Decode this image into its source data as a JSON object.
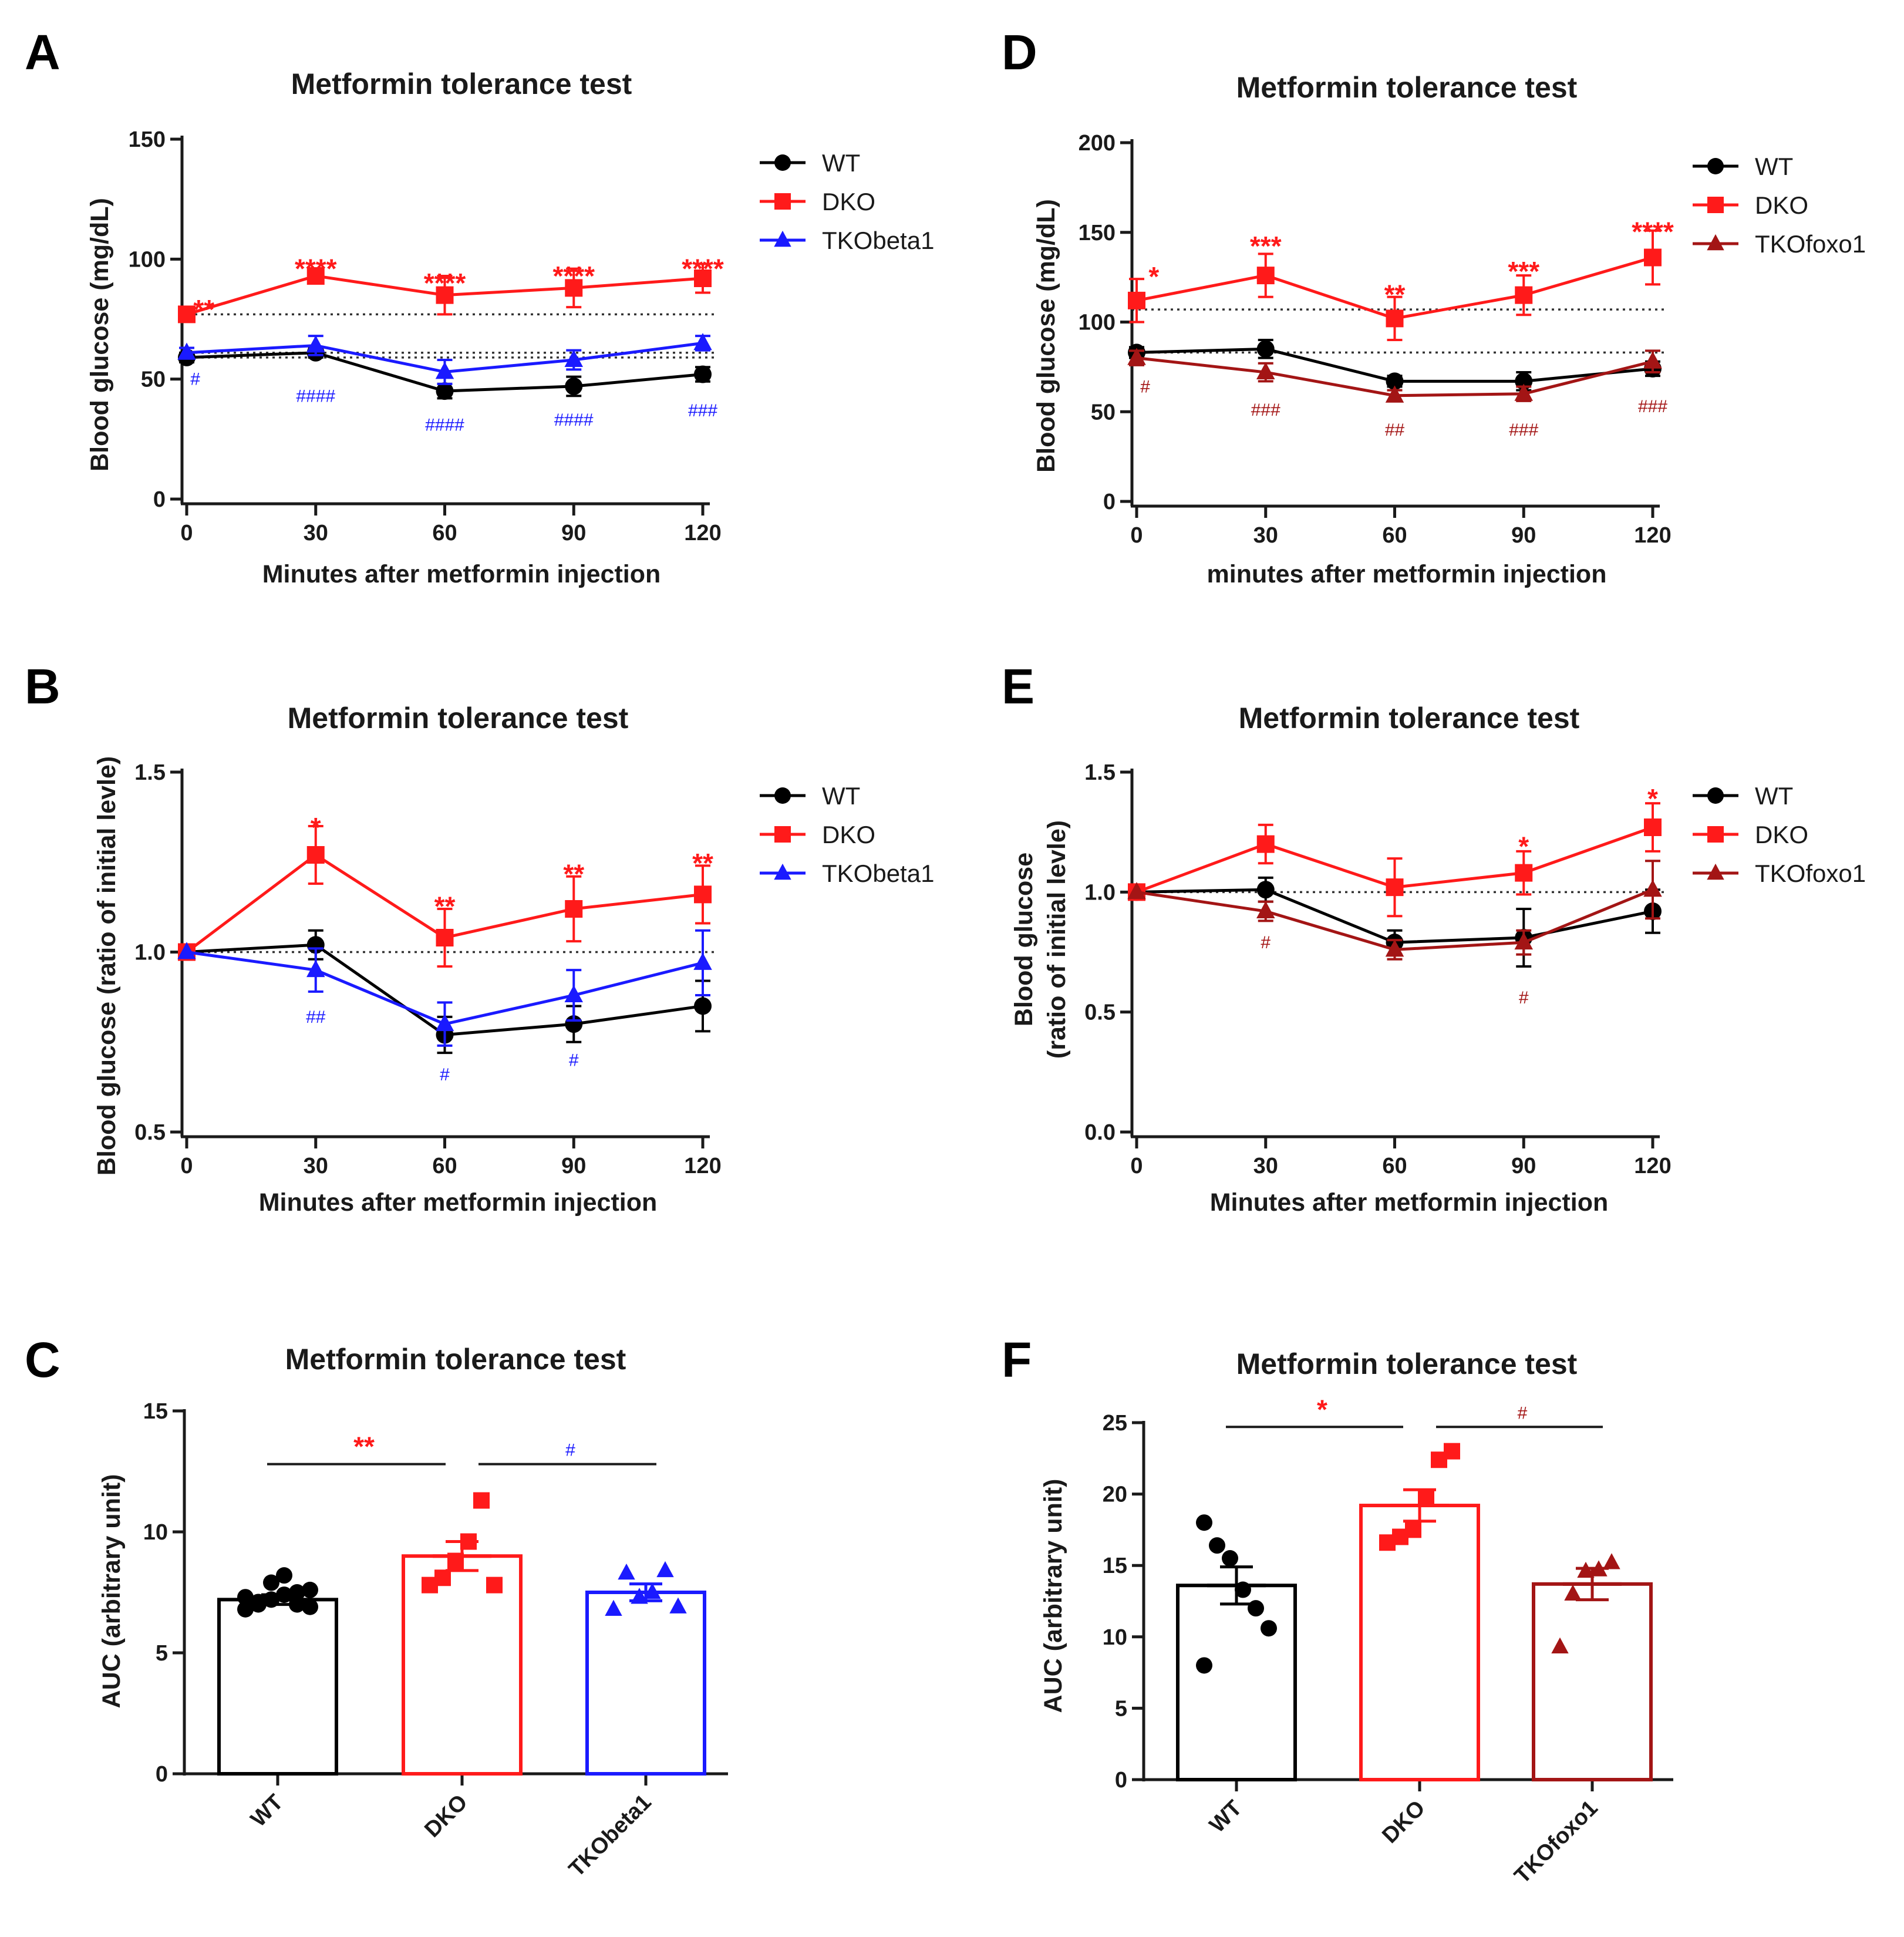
{
  "colors": {
    "WT": "#000000",
    "DKO": "#ff1a1a",
    "TKObeta1": "#1a1aff",
    "TKOfoxo1": "#a31515",
    "axis": "#1a1a1a",
    "ref_line": "#333333"
  },
  "chart_data": [
    {
      "id": "A",
      "panel_label": "A",
      "type": "line",
      "title": "Metformin tolerance test",
      "xlabel": "Minutes after metformin injection",
      "ylabel": "Blood glucose (mg/dL)",
      "xlim": [
        0,
        120
      ],
      "ylim": [
        0,
        150
      ],
      "xticks": [
        0,
        30,
        60,
        90,
        120
      ],
      "yticks": [
        0,
        50,
        100,
        150
      ],
      "ytick_labels": [
        "0",
        "50",
        "100",
        "150"
      ],
      "ref_lines": [
        77,
        61,
        59
      ],
      "x": [
        0,
        30,
        60,
        90,
        120
      ],
      "legend_position": "top-right",
      "series": [
        {
          "name": "WT",
          "color_key": "WT",
          "marker": "circle",
          "values": [
            59,
            61,
            45,
            47,
            52
          ],
          "errors": [
            2,
            2,
            3,
            4,
            3
          ]
        },
        {
          "name": "DKO",
          "color_key": "DKO",
          "marker": "square",
          "values": [
            77,
            93,
            85,
            88,
            92
          ],
          "errors": [
            3,
            2,
            8,
            8,
            6
          ]
        },
        {
          "name": "TKObeta1",
          "color_key": "TKObeta1",
          "marker": "triangle",
          "values": [
            61,
            64,
            53,
            58,
            65
          ],
          "errors": [
            2,
            4,
            5,
            4,
            3
          ]
        }
      ],
      "annotations": [
        {
          "text": "**",
          "x": 4,
          "y": 81,
          "color_key": "DKO",
          "size": 46
        },
        {
          "text": "****",
          "x": 30,
          "y": 98,
          "color_key": "DKO",
          "size": 46
        },
        {
          "text": "****",
          "x": 60,
          "y": 92,
          "color_key": "DKO",
          "size": 46
        },
        {
          "text": "****",
          "x": 90,
          "y": 95,
          "color_key": "DKO",
          "size": 46
        },
        {
          "text": "****",
          "x": 120,
          "y": 98,
          "color_key": "DKO",
          "size": 46
        },
        {
          "text": "#",
          "x": 2,
          "y": 50,
          "color_key": "TKObeta1",
          "size": 30
        },
        {
          "text": "####",
          "x": 30,
          "y": 43,
          "color_key": "TKObeta1",
          "size": 30
        },
        {
          "text": "####",
          "x": 60,
          "y": 31,
          "color_key": "TKObeta1",
          "size": 30
        },
        {
          "text": "####",
          "x": 90,
          "y": 33,
          "color_key": "TKObeta1",
          "size": 30
        },
        {
          "text": "###",
          "x": 120,
          "y": 37,
          "color_key": "TKObeta1",
          "size": 30
        }
      ]
    },
    {
      "id": "B",
      "panel_label": "B",
      "type": "line",
      "title": "Metformin tolerance test",
      "xlabel": "Minutes after metformin injection",
      "ylabel": "Blood glucose (ratio of initial levle)",
      "xlim": [
        0,
        120
      ],
      "ylim": [
        0.5,
        1.5
      ],
      "xticks": [
        0,
        30,
        60,
        90,
        120
      ],
      "yticks": [
        0.5,
        1.0,
        1.5
      ],
      "ytick_labels": [
        "0.5",
        "1.0",
        "1.5"
      ],
      "ref_lines": [
        1.0
      ],
      "x": [
        0,
        30,
        60,
        90,
        120
      ],
      "legend_position": "top-right",
      "series": [
        {
          "name": "WT",
          "color_key": "WT",
          "marker": "circle",
          "values": [
            1.0,
            1.02,
            0.77,
            0.8,
            0.85
          ],
          "errors": [
            0,
            0.04,
            0.05,
            0.05,
            0.07
          ]
        },
        {
          "name": "DKO",
          "color_key": "DKO",
          "marker": "square",
          "values": [
            1.0,
            1.27,
            1.04,
            1.12,
            1.16
          ],
          "errors": [
            0,
            0.08,
            0.08,
            0.09,
            0.08
          ]
        },
        {
          "name": "TKObeta1",
          "color_key": "TKObeta1",
          "marker": "triangle",
          "values": [
            1.0,
            0.95,
            0.8,
            0.88,
            0.97
          ],
          "errors": [
            0,
            0.06,
            0.06,
            0.07,
            0.09
          ]
        }
      ],
      "annotations": [
        {
          "text": "*",
          "x": 30,
          "y": 1.36,
          "color_key": "DKO",
          "size": 46
        },
        {
          "text": "**",
          "x": 60,
          "y": 1.14,
          "color_key": "DKO",
          "size": 46
        },
        {
          "text": "**",
          "x": 90,
          "y": 1.23,
          "color_key": "DKO",
          "size": 46
        },
        {
          "text": "**",
          "x": 120,
          "y": 1.26,
          "color_key": "DKO",
          "size": 46
        },
        {
          "text": "##",
          "x": 30,
          "y": 0.82,
          "color_key": "TKObeta1",
          "size": 30
        },
        {
          "text": "#",
          "x": 60,
          "y": 0.66,
          "color_key": "TKObeta1",
          "size": 30
        },
        {
          "text": "#",
          "x": 90,
          "y": 0.7,
          "color_key": "TKObeta1",
          "size": 30
        }
      ]
    },
    {
      "id": "C",
      "panel_label": "C",
      "type": "bar",
      "title": "Metformin tolerance test",
      "xlabel": "",
      "ylabel": "AUC (arbitrary unit)",
      "ylim": [
        0,
        15
      ],
      "yticks": [
        0,
        5,
        10,
        15
      ],
      "ytick_labels": [
        "0",
        "5",
        "10",
        "15"
      ],
      "categories": [
        "WT",
        "DKO",
        "TKObeta1"
      ],
      "color_keys": [
        "WT",
        "DKO",
        "TKObeta1"
      ],
      "markers": [
        "circle",
        "square",
        "triangle"
      ],
      "values": [
        7.2,
        9.0,
        7.5
      ],
      "sem": [
        0.2,
        0.6,
        0.35
      ],
      "points": [
        [
          6.8,
          7.0,
          7.2,
          7.4,
          7.5,
          7.6,
          7.3,
          7.1,
          7.9,
          8.2,
          7.0,
          6.9
        ],
        [
          7.8,
          8.1,
          8.8,
          9.6,
          11.3,
          7.8
        ],
        [
          6.8,
          8.3,
          7.3,
          7.5,
          8.4,
          6.9
        ]
      ],
      "significance": [
        {
          "text": "**",
          "from": 0,
          "to": 1,
          "y": 12.8,
          "color_key": "DKO"
        },
        {
          "text": "#",
          "from": 1,
          "to": 2,
          "y": 12.8,
          "color_key": "TKObeta1"
        }
      ]
    },
    {
      "id": "D",
      "panel_label": "D",
      "type": "line",
      "title": "Metformin tolerance test",
      "xlabel": "minutes after metformin injection",
      "ylabel": "Blood glucose (mg/dL)",
      "xlim": [
        0,
        120
      ],
      "ylim": [
        0,
        200
      ],
      "xticks": [
        0,
        30,
        60,
        90,
        120
      ],
      "yticks": [
        0,
        50,
        100,
        150,
        200
      ],
      "ytick_labels": [
        "0",
        "50",
        "100",
        "150",
        "200"
      ],
      "ref_lines": [
        107,
        83
      ],
      "x": [
        0,
        30,
        60,
        90,
        120
      ],
      "legend_position": "top-right",
      "series": [
        {
          "name": "WT",
          "color_key": "WT",
          "marker": "circle",
          "values": [
            83,
            85,
            67,
            67,
            74
          ],
          "errors": [
            3,
            5,
            3,
            5,
            4
          ]
        },
        {
          "name": "DKO",
          "color_key": "DKO",
          "marker": "square",
          "values": [
            112,
            126,
            102,
            115,
            136
          ],
          "errors": [
            12,
            12,
            12,
            11,
            15
          ]
        },
        {
          "name": "TKOfoxo1",
          "color_key": "TKOfoxo1",
          "marker": "triangle",
          "values": [
            80,
            72,
            59,
            60,
            78
          ],
          "errors": [
            4,
            5,
            3,
            4,
            6
          ]
        }
      ],
      "annotations": [
        {
          "text": "*",
          "x": 4,
          "y": 128,
          "color_key": "DKO",
          "size": 46
        },
        {
          "text": "***",
          "x": 30,
          "y": 145,
          "color_key": "DKO",
          "size": 46
        },
        {
          "text": "**",
          "x": 60,
          "y": 118,
          "color_key": "DKO",
          "size": 46
        },
        {
          "text": "***",
          "x": 90,
          "y": 131,
          "color_key": "DKO",
          "size": 46
        },
        {
          "text": "****",
          "x": 120,
          "y": 153,
          "color_key": "DKO",
          "size": 46
        },
        {
          "text": "#",
          "x": 2,
          "y": 64,
          "color_key": "TKOfoxo1",
          "size": 30
        },
        {
          "text": "###",
          "x": 30,
          "y": 51,
          "color_key": "TKOfoxo1",
          "size": 30
        },
        {
          "text": "##",
          "x": 60,
          "y": 40,
          "color_key": "TKOfoxo1",
          "size": 30
        },
        {
          "text": "###",
          "x": 90,
          "y": 40,
          "color_key": "TKOfoxo1",
          "size": 30
        },
        {
          "text": "###",
          "x": 120,
          "y": 53,
          "color_key": "TKOfoxo1",
          "size": 30
        }
      ]
    },
    {
      "id": "E",
      "panel_label": "E",
      "type": "line",
      "title": "Metformin tolerance test",
      "xlabel": "Minutes after metformin injection",
      "ylabel": "Blood glucose",
      "ylabel2": "(ratio of initial levle)",
      "xlim": [
        0,
        120
      ],
      "ylim": [
        0,
        1.5
      ],
      "xticks": [
        0,
        30,
        60,
        90,
        120
      ],
      "yticks": [
        0,
        0.5,
        1.0,
        1.5
      ],
      "ytick_labels": [
        "0.0",
        "0.5",
        "1.0",
        "1.5"
      ],
      "ref_lines": [
        1.0
      ],
      "x": [
        0,
        30,
        60,
        90,
        120
      ],
      "legend_position": "top-right",
      "series": [
        {
          "name": "WT",
          "color_key": "WT",
          "marker": "circle",
          "values": [
            1.0,
            1.01,
            0.79,
            0.81,
            0.92
          ],
          "errors": [
            0,
            0.05,
            0.05,
            0.12,
            0.09
          ]
        },
        {
          "name": "DKO",
          "color_key": "DKO",
          "marker": "square",
          "values": [
            1.0,
            1.2,
            1.02,
            1.08,
            1.27
          ],
          "errors": [
            0,
            0.08,
            0.12,
            0.09,
            0.1
          ]
        },
        {
          "name": "TKOfoxo1",
          "color_key": "TKOfoxo1",
          "marker": "triangle",
          "values": [
            1.0,
            0.92,
            0.76,
            0.79,
            1.01
          ],
          "errors": [
            0,
            0.04,
            0.04,
            0.05,
            0.12
          ]
        }
      ],
      "annotations": [
        {
          "text": "*",
          "x": 90,
          "y": 1.21,
          "color_key": "DKO",
          "size": 46
        },
        {
          "text": "*",
          "x": 120,
          "y": 1.41,
          "color_key": "DKO",
          "size": 46
        },
        {
          "text": "#",
          "x": 30,
          "y": 0.79,
          "color_key": "TKOfoxo1",
          "size": 30
        },
        {
          "text": "#",
          "x": 90,
          "y": 0.56,
          "color_key": "TKOfoxo1",
          "size": 30
        }
      ]
    },
    {
      "id": "F",
      "panel_label": "F",
      "type": "bar",
      "title": "Metformin tolerance test",
      "xlabel": "",
      "ylabel": "AUC (arbitrary unit)",
      "ylim": [
        0,
        25
      ],
      "yticks": [
        0,
        5,
        10,
        15,
        20,
        25
      ],
      "ytick_labels": [
        "0",
        "5",
        "10",
        "15",
        "20",
        "25"
      ],
      "categories": [
        "WT",
        "DKO",
        "TKOfoxo1"
      ],
      "color_keys": [
        "WT",
        "DKO",
        "TKOfoxo1"
      ],
      "markers": [
        "circle",
        "square",
        "triangle"
      ],
      "values": [
        13.6,
        19.2,
        13.7
      ],
      "sem": [
        1.3,
        1.1,
        1.1
      ],
      "points": [
        [
          18.0,
          16.4,
          15.5,
          13.3,
          12.0,
          10.6,
          8.0
        ],
        [
          16.6,
          17.0,
          17.5,
          19.7,
          22.4,
          23.0
        ],
        [
          9.3,
          13.0,
          14.6,
          14.7,
          15.2
        ]
      ],
      "significance": [
        {
          "text": "*",
          "from": 0,
          "to": 1,
          "y": 24.7,
          "color_key": "DKO"
        },
        {
          "text": "#",
          "from": 1,
          "to": 2,
          "y": 24.7,
          "color_key": "TKOfoxo1"
        }
      ]
    }
  ]
}
